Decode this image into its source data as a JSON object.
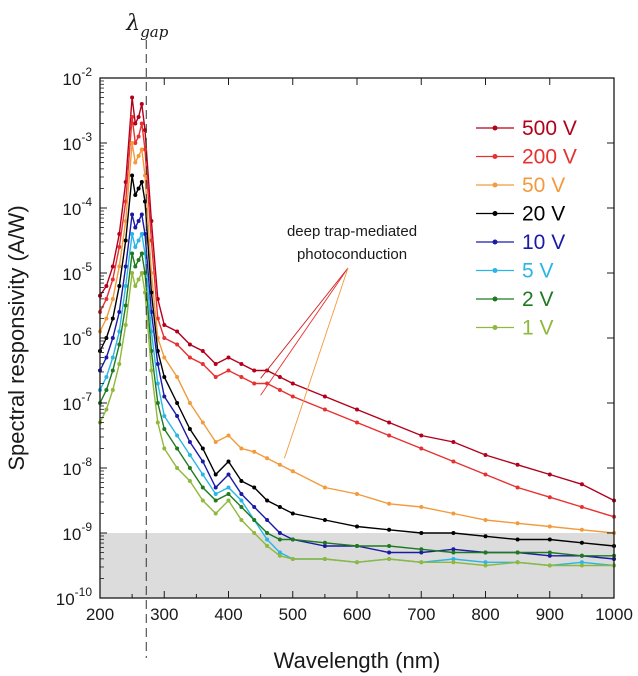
{
  "chart_data": {
    "type": "line",
    "title": "",
    "xlabel": "Wavelength (nm)",
    "ylabel": "Spectral responsivity (A/W)",
    "xlim": [
      200,
      1000
    ],
    "ylim_exp": [
      -10,
      -2
    ],
    "yscale": "log",
    "grid": false,
    "legend_position": "top-right",
    "x_ticks": [
      "200",
      "300",
      "400",
      "500",
      "600",
      "700",
      "800",
      "900",
      "1000"
    ],
    "y_tick_base": "10",
    "y_tick_exponents": [
      "-10",
      "-9",
      "-8",
      "-7",
      "-6",
      "-5",
      "-4",
      "-3",
      "-2"
    ],
    "noise_floor": {
      "value_exp": -9,
      "color": "#dcdcdc"
    },
    "gap_marker": {
      "x": 272,
      "label_main": "λ",
      "label_sub": "gap"
    },
    "annotation": {
      "line1": "deep trap-mediated",
      "line2": "photoconduction",
      "targets": [
        {
          "x": 450,
          "y_exp": -6.62
        },
        {
          "x": 450,
          "y_exp": -6.88
        },
        {
          "x": 487,
          "y_exp": -7.85
        }
      ],
      "colors": [
        "#cc1f1f",
        "#e83030",
        "#f29a3c"
      ]
    },
    "x": [
      200,
      210,
      220,
      230,
      240,
      250,
      255,
      260,
      265,
      270,
      280,
      290,
      300,
      320,
      340,
      360,
      380,
      400,
      420,
      440,
      460,
      480,
      500,
      550,
      600,
      650,
      700,
      750,
      800,
      850,
      900,
      950,
      1000
    ],
    "series": [
      {
        "name": "500 V",
        "color": "#b3001b",
        "y_exp": [
          -5.35,
          -5.2,
          -4.9,
          -4.4,
          -3.6,
          -2.3,
          -2.7,
          -2.6,
          -2.4,
          -2.8,
          -4.2,
          -5.4,
          -5.8,
          -5.9,
          -6.1,
          -6.2,
          -6.4,
          -6.3,
          -6.4,
          -6.5,
          -6.5,
          -6.6,
          -6.7,
          -6.9,
          -7.1,
          -7.3,
          -7.5,
          -7.6,
          -7.8,
          -7.95,
          -8.1,
          -8.25,
          -8.5
        ]
      },
      {
        "name": "200 V",
        "color": "#e83030",
        "y_exp": [
          -5.6,
          -5.4,
          -5.1,
          -4.6,
          -3.9,
          -2.6,
          -3.0,
          -2.9,
          -2.7,
          -3.1,
          -4.5,
          -5.7,
          -6.0,
          -6.1,
          -6.3,
          -6.4,
          -6.6,
          -6.5,
          -6.6,
          -6.7,
          -6.7,
          -6.8,
          -6.9,
          -7.1,
          -7.3,
          -7.5,
          -7.7,
          -7.9,
          -8.1,
          -8.3,
          -8.45,
          -8.6,
          -8.75
        ]
      },
      {
        "name": "50 V",
        "color": "#f29a3c",
        "y_exp": [
          -5.9,
          -5.7,
          -5.4,
          -4.9,
          -4.2,
          -3.0,
          -3.3,
          -3.2,
          -3.1,
          -3.5,
          -5.0,
          -6.0,
          -6.3,
          -6.6,
          -7.0,
          -7.3,
          -7.6,
          -7.5,
          -7.7,
          -7.75,
          -7.85,
          -7.95,
          -8.05,
          -8.3,
          -8.4,
          -8.55,
          -8.6,
          -8.7,
          -8.8,
          -8.85,
          -8.9,
          -8.95,
          -9.0
        ]
      },
      {
        "name": "20 V",
        "color": "#000000",
        "y_exp": [
          -6.2,
          -6.0,
          -5.7,
          -5.2,
          -4.5,
          -3.5,
          -3.8,
          -3.7,
          -3.6,
          -3.9,
          -5.3,
          -6.2,
          -6.6,
          -7.0,
          -7.4,
          -7.7,
          -8.1,
          -7.9,
          -8.2,
          -8.3,
          -8.5,
          -8.6,
          -8.7,
          -8.8,
          -8.9,
          -8.95,
          -9.0,
          -9.0,
          -9.05,
          -9.1,
          -9.1,
          -9.15,
          -9.2
        ]
      },
      {
        "name": "10 V",
        "color": "#1a1aa6",
        "y_exp": [
          -6.5,
          -6.3,
          -6.0,
          -5.6,
          -4.9,
          -4.1,
          -4.3,
          -4.2,
          -4.1,
          -4.4,
          -5.6,
          -6.4,
          -6.9,
          -7.2,
          -7.6,
          -7.9,
          -8.3,
          -8.1,
          -8.4,
          -8.6,
          -8.8,
          -9.0,
          -9.1,
          -9.2,
          -9.2,
          -9.3,
          -9.3,
          -9.25,
          -9.3,
          -9.3,
          -9.35,
          -9.35,
          -9.4
        ]
      },
      {
        "name": "5 V",
        "color": "#29b6e6",
        "y_exp": [
          -6.8,
          -6.6,
          -6.3,
          -5.9,
          -5.2,
          -4.4,
          -4.6,
          -4.5,
          -4.4,
          -4.7,
          -5.9,
          -6.7,
          -7.2,
          -7.5,
          -7.8,
          -8.1,
          -8.4,
          -8.3,
          -8.5,
          -8.8,
          -9.1,
          -9.3,
          -9.4,
          -9.4,
          -9.45,
          -9.4,
          -9.45,
          -9.4,
          -9.45,
          -9.45,
          -9.5,
          -9.45,
          -9.5
        ]
      },
      {
        "name": "2 V",
        "color": "#1f7a1f",
        "y_exp": [
          -7.0,
          -6.8,
          -6.5,
          -6.1,
          -5.5,
          -4.7,
          -4.9,
          -4.8,
          -4.7,
          -5.0,
          -6.2,
          -7.0,
          -7.4,
          -7.7,
          -8.0,
          -8.3,
          -8.5,
          -8.4,
          -8.6,
          -8.8,
          -9.0,
          -9.1,
          -9.1,
          -9.15,
          -9.2,
          -9.2,
          -9.25,
          -9.3,
          -9.3,
          -9.3,
          -9.3,
          -9.35,
          -9.35
        ]
      },
      {
        "name": "1 V",
        "color": "#8fb83c",
        "y_exp": [
          -7.3,
          -7.1,
          -6.8,
          -6.4,
          -5.8,
          -5.0,
          -5.2,
          -5.1,
          -5.0,
          -5.3,
          -6.5,
          -7.3,
          -7.7,
          -8.0,
          -8.2,
          -8.5,
          -8.7,
          -8.5,
          -8.8,
          -9.0,
          -9.2,
          -9.35,
          -9.4,
          -9.4,
          -9.45,
          -9.4,
          -9.45,
          -9.45,
          -9.5,
          -9.45,
          -9.5,
          -9.5,
          -9.5
        ]
      }
    ]
  }
}
